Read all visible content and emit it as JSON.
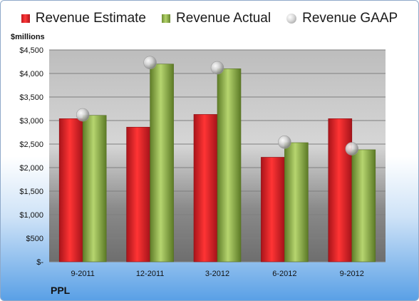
{
  "legend": {
    "estimate": "Revenue Estimate",
    "actual": "Revenue Actual",
    "gaap": "Revenue GAAP"
  },
  "unit_label": "$millions",
  "company": "PPL",
  "colors": {
    "estimate": "#d81e25",
    "actual": "#8fb04a",
    "gaap": "#c8c8c8"
  },
  "chart_data": {
    "type": "bar",
    "categories": [
      "9-2011",
      "12-2011",
      "3-2012",
      "6-2012",
      "9-2012"
    ],
    "series": [
      {
        "name": "Revenue Estimate",
        "values": [
          3040,
          2860,
          3130,
          2220,
          3040
        ]
      },
      {
        "name": "Revenue Actual",
        "values": [
          3110,
          4200,
          4100,
          2530,
          2380
        ]
      },
      {
        "name": "Revenue GAAP",
        "values": [
          3120,
          4230,
          4120,
          2540,
          2400
        ],
        "style": "marker"
      }
    ],
    "ylabel": "$millions",
    "ylim": [
      0,
      4500
    ],
    "yticks": [
      0,
      500,
      1000,
      1500,
      2000,
      2500,
      3000,
      3500,
      4000,
      4500
    ],
    "ytick_labels": [
      "$-",
      "$500",
      "$1,000",
      "$1,500",
      "$2,000",
      "$2,500",
      "$3,000",
      "$3,500",
      "$4,000",
      "$4,500"
    ],
    "grid": true,
    "legend_position": "top"
  }
}
